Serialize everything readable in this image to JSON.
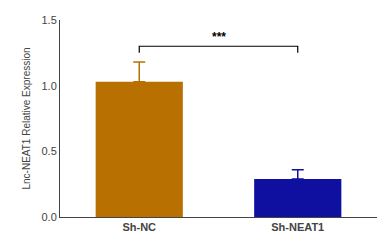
{
  "chart_data": {
    "type": "bar",
    "categories": [
      "Sh-NC",
      "Sh-NEAT1"
    ],
    "values": [
      1.03,
      0.29
    ],
    "errors": [
      0.15,
      0.07
    ],
    "colors": [
      "#B87000",
      "#1010A0"
    ],
    "ylabel": "Lnc-NEAT1 Relative Expression",
    "ylim": [
      0,
      1.5
    ],
    "yticks": [
      {
        "value": 0,
        "label": "0.0"
      },
      {
        "value": 0.5,
        "label": "0.5"
      },
      {
        "value": 1,
        "label": "1.0"
      },
      {
        "value": 1.5,
        "label": "1.5"
      }
    ],
    "grid": false,
    "annotations": [
      {
        "text": "***",
        "between": [
          "Sh-NC",
          "Sh-NEAT1"
        ],
        "y": 1.3,
        "bracket_y": 1.25
      }
    ]
  }
}
